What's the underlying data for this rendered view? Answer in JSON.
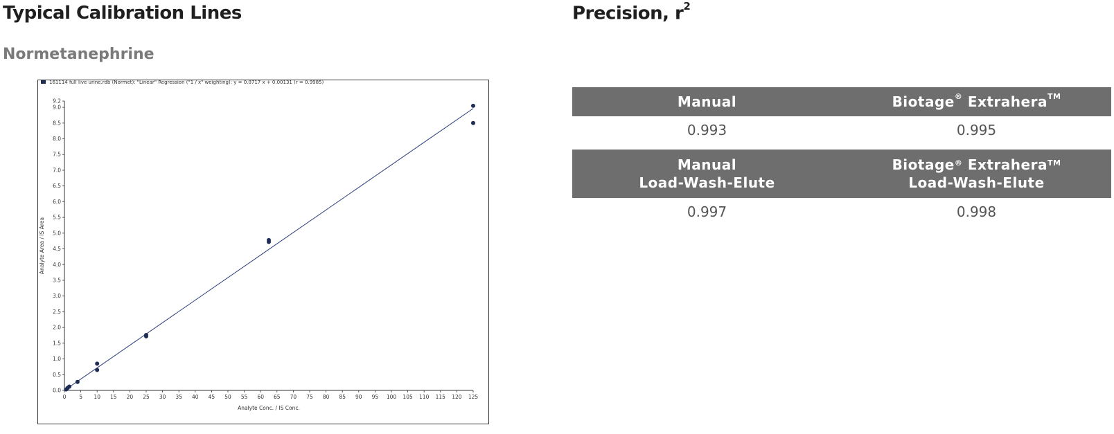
{
  "headings": {
    "calibration": "Typical Calibration Lines",
    "precision": "Precision, r",
    "precision_sup": "2",
    "analyte": "Normetanephrine"
  },
  "precision_table": {
    "header_bg": "#6e6e6e",
    "rows": [
      {
        "col1": "Manual",
        "col2": "Biotage",
        "col2_reg": "®",
        "col2_b": "Extrahera",
        "col2_tm": "TM",
        "col1_sub": "",
        "col2_sub": "",
        "v1": "0.993",
        "v2": "0.995"
      },
      {
        "col1": "Manual",
        "col2": "Biotage",
        "col2_reg": "®",
        "col2_b": "Extrahera",
        "col2_tm": "TM",
        "col1_sub": "Load-Wash-Elute",
        "col2_sub": "Load-Wash-Elute",
        "v1": "0.997",
        "v2": "0.998"
      }
    ]
  },
  "chart_data": {
    "type": "scatter",
    "legend": "161114 full live urine.rdb (Normet): \"Linear\" Regression (\"1 / x\" weighting): y = 0.0717 x + 0.00131 (r = 0.9985)",
    "xlabel": "Analyte Conc. / IS Conc.",
    "ylabel": "Analyte Area / IS Area",
    "xlim": [
      0,
      125
    ],
    "ylim": [
      0,
      9.2
    ],
    "x_ticks": [
      "0",
      "5",
      "10",
      "15",
      "20",
      "25",
      "30",
      "35",
      "40",
      "45",
      "50",
      "55",
      "60",
      "65",
      "70",
      "75",
      "80",
      "85",
      "90",
      "95",
      "100",
      "105",
      "110",
      "115",
      "120",
      "125"
    ],
    "y_ticks": [
      "0.0",
      "0.5",
      "1.0",
      "1.5",
      "2.0",
      "2.5",
      "3.0",
      "3.5",
      "4.0",
      "4.5",
      "5.0",
      "5.5",
      "6.0",
      "6.5",
      "7.0",
      "7.5",
      "8.0",
      "8.5",
      "9.0",
      "9.2"
    ],
    "fit": {
      "slope": 0.0717,
      "intercept": 0.00131
    },
    "points": [
      {
        "x": 0.5,
        "y": 0.03
      },
      {
        "x": 1.0,
        "y": 0.08
      },
      {
        "x": 1.5,
        "y": 0.12
      },
      {
        "x": 4.0,
        "y": 0.27
      },
      {
        "x": 10.0,
        "y": 0.65
      },
      {
        "x": 10.0,
        "y": 0.85
      },
      {
        "x": 25.0,
        "y": 1.72
      },
      {
        "x": 25.0,
        "y": 1.76
      },
      {
        "x": 62.5,
        "y": 4.72
      },
      {
        "x": 62.5,
        "y": 4.78
      },
      {
        "x": 125.0,
        "y": 8.5
      },
      {
        "x": 125.0,
        "y": 9.05
      }
    ],
    "point_color": "#1f2d55",
    "line_color": "#2a3a7a"
  }
}
